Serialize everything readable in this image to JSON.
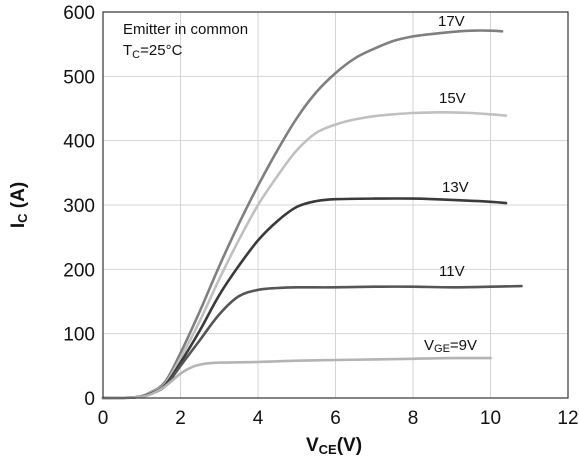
{
  "chart_data": {
    "type": "line",
    "xlabel_main": "V",
    "xlabel_sub": "CE",
    "xlabel_unit": "(V)",
    "ylabel_main": "I",
    "ylabel_sub": "C",
    "ylabel_unit": " (A)",
    "xlim": [
      0,
      12
    ],
    "ylim": [
      0,
      600
    ],
    "xticks": [
      0,
      2,
      4,
      6,
      8,
      10,
      12
    ],
    "yticks": [
      0,
      100,
      200,
      300,
      400,
      500,
      600
    ],
    "grid": true,
    "annotation": {
      "line1": "Emitter in common",
      "line2_main": "T",
      "line2_sub": "C",
      "line2_rest": "=25°C"
    },
    "series": [
      {
        "label": "17V",
        "color": "#7f7f7f",
        "x": [
          0,
          0.8,
          1.2,
          1.6,
          2.0,
          2.5,
          3.0,
          3.5,
          4.0,
          4.5,
          5.0,
          5.5,
          6.0,
          6.5,
          7.0,
          7.5,
          8.0,
          8.5,
          9.0,
          9.5,
          10.0,
          10.3
        ],
        "y": [
          0,
          1,
          8,
          25,
          70,
          135,
          205,
          270,
          330,
          385,
          435,
          475,
          505,
          528,
          543,
          555,
          562,
          566,
          569,
          571,
          571,
          570
        ]
      },
      {
        "label": "15V",
        "color": "#c0c0c0",
        "x": [
          0,
          0.8,
          1.2,
          1.6,
          2.0,
          2.5,
          3.0,
          3.5,
          4.0,
          4.5,
          5.0,
          5.5,
          6.0,
          6.5,
          7.0,
          7.5,
          8.0,
          8.5,
          9.0,
          9.5,
          10.0,
          10.4
        ],
        "y": [
          0,
          1,
          7,
          22,
          62,
          120,
          185,
          245,
          300,
          345,
          385,
          412,
          425,
          433,
          438,
          441,
          443,
          444,
          444,
          443,
          441,
          439
        ]
      },
      {
        "label": "13V",
        "color": "#3a3a3a",
        "x": [
          0,
          0.8,
          1.2,
          1.6,
          2.0,
          2.5,
          3.0,
          3.5,
          4.0,
          4.5,
          5.0,
          5.5,
          6.0,
          7.0,
          8.0,
          9.0,
          10.0,
          10.4
        ],
        "y": [
          0,
          1,
          6,
          20,
          55,
          105,
          160,
          205,
          245,
          275,
          297,
          306,
          309,
          310,
          310,
          308,
          305,
          303
        ]
      },
      {
        "label": "11V",
        "color": "#555555",
        "x": [
          0,
          0.8,
          1.2,
          1.6,
          2.0,
          2.5,
          3.0,
          3.5,
          4.0,
          4.5,
          5.0,
          6.0,
          7.0,
          8.0,
          9.0,
          10.0,
          10.8
        ],
        "y": [
          0,
          1,
          6,
          18,
          50,
          90,
          130,
          158,
          168,
          171,
          172,
          172,
          173,
          173,
          172,
          173,
          174
        ]
      },
      {
        "label_main": "V",
        "label_sub": "GE",
        "label_rest": "=9V",
        "color": "#b4b4b4",
        "x": [
          0,
          0.8,
          1.2,
          1.6,
          2.0,
          2.3,
          2.6,
          3.0,
          4.0,
          5.0,
          6.0,
          7.0,
          8.0,
          9.0,
          10.0
        ],
        "y": [
          0,
          1,
          5,
          18,
          38,
          48,
          53,
          55,
          56,
          58,
          59,
          60,
          61,
          62,
          62
        ]
      }
    ]
  }
}
